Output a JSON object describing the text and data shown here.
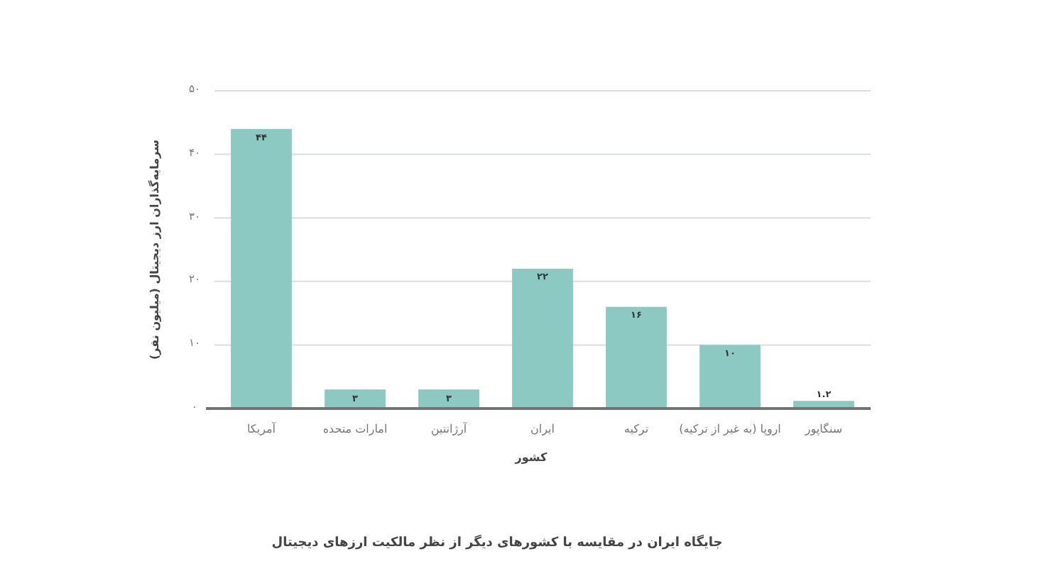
{
  "chart_data": {
    "type": "bar",
    "title": "جایگاه ایران در مقایسه با کشورهای دیگر از نظر مالکیت ارزهای دیجیتال",
    "xlabel": "کشور",
    "ylabel": "سرمایه‌گذاران ارز دیجیتال (میلیون نفر)",
    "categories": [
      "آمریکا",
      "امارات متحده",
      "آرژانتین",
      "ایران",
      "ترکیه",
      "اروپا (به غیر از ترکیه)",
      "سنگاپور"
    ],
    "values": [
      44,
      3,
      3,
      22,
      16,
      10,
      1.2
    ],
    "value_labels": [
      "۴۴",
      "۳",
      "۳",
      "۲۲",
      "۱۶",
      "۱۰",
      "۱.۲"
    ],
    "color": "#8cc9c2",
    "grid": "y",
    "ylim": [
      0,
      50
    ],
    "yticks": [
      {
        "value": 0,
        "label": "۰"
      },
      {
        "value": 10,
        "label": "۱۰"
      },
      {
        "value": 20,
        "label": "۲۰"
      },
      {
        "value": 30,
        "label": "۳۰"
      },
      {
        "value": 40,
        "label": "۴۰"
      },
      {
        "value": 50,
        "label": "۵۰"
      }
    ]
  }
}
